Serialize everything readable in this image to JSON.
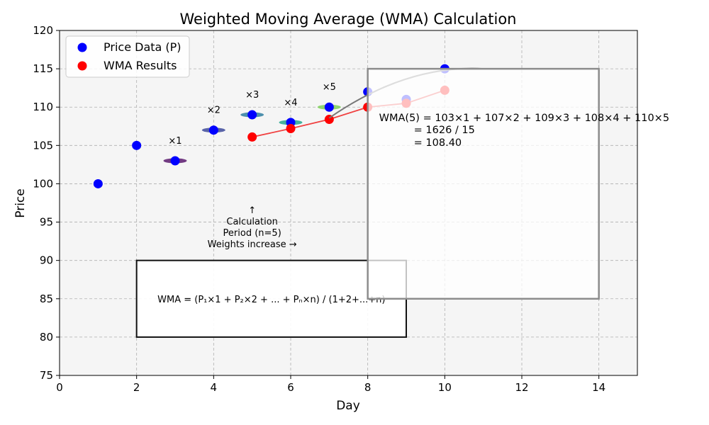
{
  "chart_data": {
    "type": "scatter",
    "title": "Weighted Moving Average (WMA) Calculation",
    "xlabel": "Day",
    "ylabel": "Price",
    "xlim": [
      0,
      15
    ],
    "ylim": [
      75,
      120
    ],
    "xticks": [
      0,
      2,
      4,
      6,
      8,
      10,
      12,
      14
    ],
    "yticks": [
      75,
      80,
      85,
      90,
      95,
      100,
      105,
      110,
      115,
      120
    ],
    "grid": true,
    "legend_position": "top-left",
    "series": [
      {
        "name": "Price Data (P)",
        "color": "#0000ff",
        "x": [
          1,
          2,
          3,
          4,
          5,
          6,
          7,
          8,
          9,
          10
        ],
        "y": [
          100,
          105,
          103,
          107,
          109,
          108,
          110,
          112,
          111,
          115
        ]
      },
      {
        "name": "WMA Results",
        "color": "#ff0000",
        "line_color": "#f04040",
        "x": [
          5,
          6,
          7,
          8,
          9,
          10
        ],
        "y": [
          106.1,
          107.2,
          108.4,
          110.0,
          110.5,
          112.2
        ]
      }
    ],
    "weights": [
      {
        "day": 3,
        "price": 103,
        "label": "×1",
        "color": "#5b1a6e"
      },
      {
        "day": 4,
        "price": 107,
        "label": "×2",
        "color": "#3d4a9a"
      },
      {
        "day": 5,
        "price": 109,
        "label": "×3",
        "color": "#2f7ea0"
      },
      {
        "day": 6,
        "price": 108,
        "label": "×4",
        "color": "#26a68e"
      },
      {
        "day": 7,
        "price": 110,
        "label": "×5",
        "color": "#7fd05a"
      }
    ],
    "window_annotation": {
      "lines": [
        "↑",
        "Calculation",
        "Period (n=5)",
        "Weights increase →"
      ]
    },
    "formula_box": {
      "text": "WMA = (P₁×1 + P₂×2 + ... + Pₙ×n) / (1+2+...+n)",
      "x_range": [
        2,
        9
      ],
      "y_range": [
        80,
        90
      ]
    },
    "example_box": {
      "lines": [
        "WMA(5) = 103×1 + 107×2 + 109×3 + 108×4 + 110×5",
        "= 1626 / 15",
        "= 108.40"
      ],
      "x_range": [
        8,
        14
      ],
      "y_range": [
        85,
        115
      ]
    },
    "connector_arrow": {
      "from": [
        7,
        108.4
      ],
      "to": [
        11,
        115
      ]
    }
  }
}
